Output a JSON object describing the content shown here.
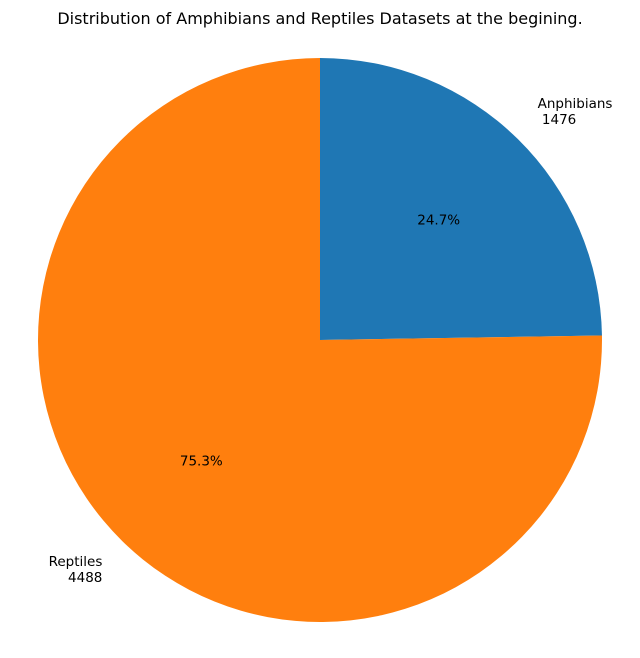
{
  "chart_data": {
    "type": "pie",
    "title": "Distribution of Amphibians and Reptiles Datasets at the begining.",
    "start_angle_deg": 90,
    "direction": "clockwise",
    "slices": [
      {
        "label": "Anphibians",
        "count_text": "1476",
        "value": 1476,
        "percent_text": "24.7%",
        "color": "#1f77b4"
      },
      {
        "label": "Reptiles",
        "count_text": "4488",
        "value": 4488,
        "percent_text": "75.3%",
        "color": "#ff7f0e"
      }
    ]
  }
}
